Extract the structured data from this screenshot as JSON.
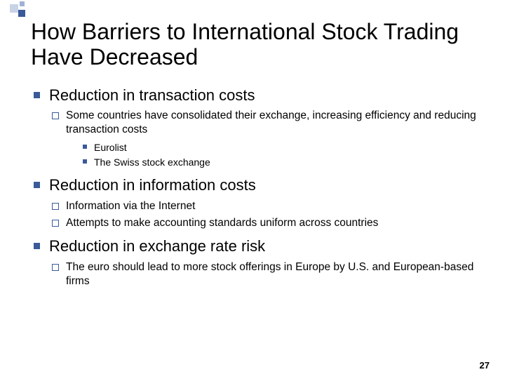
{
  "accent_color": "#3a5a99",
  "background_color": "#ffffff",
  "text_color": "#000000",
  "title_fontsize": 32,
  "lvl1_fontsize": 22,
  "lvl2_fontsize": 15.5,
  "lvl3_fontsize": 14,
  "title": "How Barriers to International Stock Trading Have Decreased",
  "bullets": [
    {
      "text": "Reduction in transaction costs",
      "children": [
        {
          "text": "Some countries have consolidated their exchange, increasing efficiency and reducing transaction costs",
          "children": [
            {
              "text": "Eurolist"
            },
            {
              "text": "The Swiss stock exchange"
            }
          ]
        }
      ]
    },
    {
      "text": "Reduction in information costs",
      "children": [
        {
          "text": "Information via the Internet"
        },
        {
          "text": "Attempts to make accounting standards uniform across countries"
        }
      ]
    },
    {
      "text": "Reduction in exchange rate risk",
      "children": [
        {
          "text": "The euro should lead to more stock offerings in Europe by U.S. and European-based firms"
        }
      ]
    }
  ],
  "page_number": "27"
}
